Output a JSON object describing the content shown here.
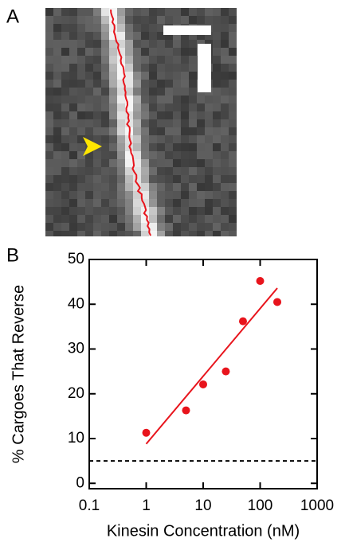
{
  "panel_labels": [
    "A",
    "B"
  ],
  "chart_data": {
    "type": "scatter",
    "x_label": "Kinesin Concentration (nM)",
    "y_label": "% Cargoes That Reverse",
    "x": [
      1,
      5,
      10,
      25,
      50,
      100,
      200
    ],
    "values": [
      11.3,
      16.3,
      22.1,
      25,
      36.2,
      45.2,
      40.5
    ],
    "color": "#e8141c",
    "fit": {
      "x": [
        1,
        200
      ],
      "values": [
        8.8,
        43.6
      ]
    },
    "reference_line": 5,
    "x_log": true,
    "xlim": [
      0.1,
      1000
    ],
    "xticks": [
      0.1,
      1,
      10,
      100,
      1000
    ],
    "ylim": [
      -1.2,
      50
    ],
    "yticks": [
      0,
      10,
      20,
      30,
      40,
      50
    ]
  }
}
